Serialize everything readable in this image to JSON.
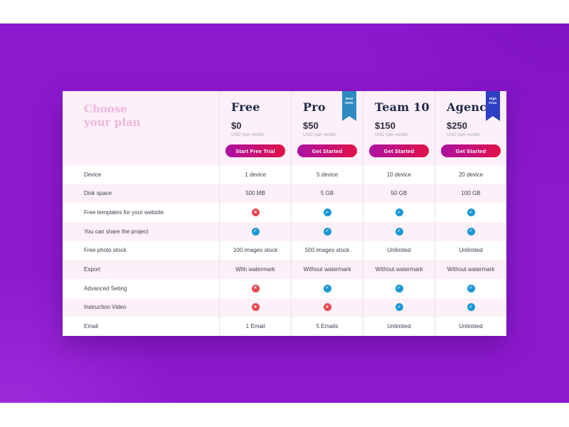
{
  "header": {
    "title_line1": "Choose",
    "title_line2": "your plan"
  },
  "features": [
    "Device",
    "Disk space",
    "Free templates for your website",
    "You can share the project",
    "Free photo stock",
    "Export",
    "Advanced Seting",
    "Instruction Video",
    "Email"
  ],
  "plans": [
    {
      "name": "Free",
      "price": "$0",
      "period": "USD /per month",
      "button_label": "Start Free Trial",
      "badge": null,
      "values": [
        "1 device",
        "500 MB",
        "cross",
        "check",
        "100 images stock",
        "With watermark",
        "cross",
        "cross",
        "1 Email"
      ]
    },
    {
      "name": "Pro",
      "price": "$50",
      "period": "USD /per month",
      "button_label": "Get Started",
      "badge": {
        "label": "Best Seller",
        "color": "#2d8ac1"
      },
      "values": [
        "5 device",
        "5 GB",
        "check",
        "check",
        "500 images stock",
        "Without watermark",
        "check",
        "cross",
        "5 Emails"
      ]
    },
    {
      "name": "Team 10",
      "price": "$150",
      "period": "USD /per month",
      "button_label": "Get Started",
      "badge": null,
      "values": [
        "10 device",
        "50 GB",
        "check",
        "check",
        "Unlimited",
        "Without watermark",
        "check",
        "check",
        "Unlimited"
      ]
    },
    {
      "name": "Agency",
      "price": "$250",
      "period": "USD /per month",
      "button_label": "Get Started",
      "badge": {
        "label": "High Price",
        "color": "#2e3fc4"
      },
      "values": [
        "20 device",
        "100 GB",
        "check",
        "check",
        "Unlimited",
        "Without watermark",
        "check",
        "check",
        "Unlimited"
      ]
    }
  ],
  "icons": {
    "check": "✓",
    "cross": "✕"
  },
  "colors": {
    "background_purple": "#8d19cf",
    "card_pink": "#fdf0f8",
    "title_pink": "#efb6dc",
    "heading_navy": "#1e2749",
    "check_blue": "#1a98d5",
    "cross_red": "#e8474f",
    "button_gradient_start": "#aa11a4",
    "button_gradient_end": "#e11148"
  }
}
